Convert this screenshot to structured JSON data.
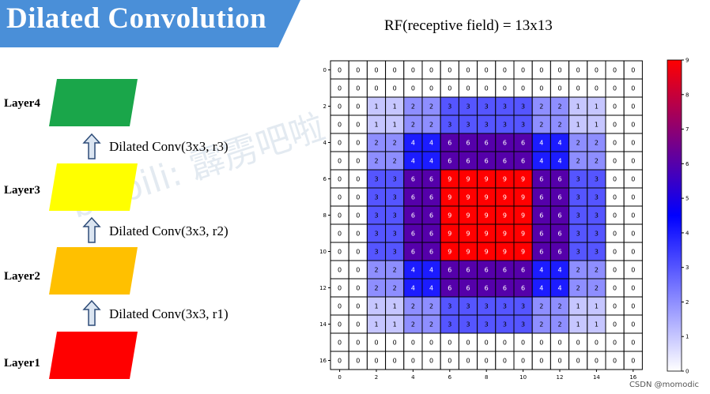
{
  "title": "Dilated Convolution",
  "rf_title": "RF(receptive field) = 13x13",
  "layers": [
    {
      "label": "Layer4",
      "color": "#1aa64a"
    },
    {
      "label": "Layer3",
      "color": "#ffff00"
    },
    {
      "label": "Layer2",
      "color": "#ffc000"
    },
    {
      "label": "Layer1",
      "color": "#ff0000"
    }
  ],
  "convs": [
    "Dilated Conv(3x3, r3)",
    "Dilated Conv(3x3, r2)",
    "Dilated Conv(3x3, r1)"
  ],
  "watermark": "bilibili: 霹雳吧啦",
  "credit": "CSDN @momodic",
  "colors": {
    "banner": "#4a8fd8",
    "arrow_fill": "#dbe5f1",
    "arrow_stroke": "#2e4c78"
  },
  "chart_data": {
    "type": "heatmap",
    "colormap": "bwr",
    "vmin": 0,
    "vmax": 9,
    "x_ticks": [
      0,
      2,
      4,
      6,
      8,
      10,
      12,
      14,
      16
    ],
    "y_ticks": [
      0,
      2,
      4,
      6,
      8,
      10,
      12,
      14,
      16
    ],
    "colorbar_ticks": [
      0,
      1,
      2,
      3,
      4,
      5,
      6,
      7,
      8,
      9
    ],
    "values": [
      [
        0,
        0,
        0,
        0,
        0,
        0,
        0,
        0,
        0,
        0,
        0,
        0,
        0,
        0,
        0,
        0,
        0
      ],
      [
        0,
        0,
        0,
        0,
        0,
        0,
        0,
        0,
        0,
        0,
        0,
        0,
        0,
        0,
        0,
        0,
        0
      ],
      [
        0,
        0,
        1,
        1,
        2,
        2,
        3,
        3,
        3,
        3,
        3,
        2,
        2,
        1,
        1,
        0,
        0
      ],
      [
        0,
        0,
        1,
        1,
        2,
        2,
        3,
        3,
        3,
        3,
        3,
        2,
        2,
        1,
        1,
        0,
        0
      ],
      [
        0,
        0,
        2,
        2,
        4,
        4,
        6,
        6,
        6,
        6,
        6,
        4,
        4,
        2,
        2,
        0,
        0
      ],
      [
        0,
        0,
        2,
        2,
        4,
        4,
        6,
        6,
        6,
        6,
        6,
        4,
        4,
        2,
        2,
        0,
        0
      ],
      [
        0,
        0,
        3,
        3,
        6,
        6,
        9,
        9,
        9,
        9,
        9,
        6,
        6,
        3,
        3,
        0,
        0
      ],
      [
        0,
        0,
        3,
        3,
        6,
        6,
        9,
        9,
        9,
        9,
        9,
        6,
        6,
        3,
        3,
        0,
        0
      ],
      [
        0,
        0,
        3,
        3,
        6,
        6,
        9,
        9,
        9,
        9,
        9,
        6,
        6,
        3,
        3,
        0,
        0
      ],
      [
        0,
        0,
        3,
        3,
        6,
        6,
        9,
        9,
        9,
        9,
        9,
        6,
        6,
        3,
        3,
        0,
        0
      ],
      [
        0,
        0,
        3,
        3,
        6,
        6,
        9,
        9,
        9,
        9,
        9,
        6,
        6,
        3,
        3,
        0,
        0
      ],
      [
        0,
        0,
        2,
        2,
        4,
        4,
        6,
        6,
        6,
        6,
        6,
        4,
        4,
        2,
        2,
        0,
        0
      ],
      [
        0,
        0,
        2,
        2,
        4,
        4,
        6,
        6,
        6,
        6,
        6,
        4,
        4,
        2,
        2,
        0,
        0
      ],
      [
        0,
        0,
        1,
        1,
        2,
        2,
        3,
        3,
        3,
        3,
        3,
        2,
        2,
        1,
        1,
        0,
        0
      ],
      [
        0,
        0,
        1,
        1,
        2,
        2,
        3,
        3,
        3,
        3,
        3,
        2,
        2,
        1,
        1,
        0,
        0
      ],
      [
        0,
        0,
        0,
        0,
        0,
        0,
        0,
        0,
        0,
        0,
        0,
        0,
        0,
        0,
        0,
        0,
        0
      ],
      [
        0,
        0,
        0,
        0,
        0,
        0,
        0,
        0,
        0,
        0,
        0,
        0,
        0,
        0,
        0,
        0,
        0
      ]
    ]
  }
}
